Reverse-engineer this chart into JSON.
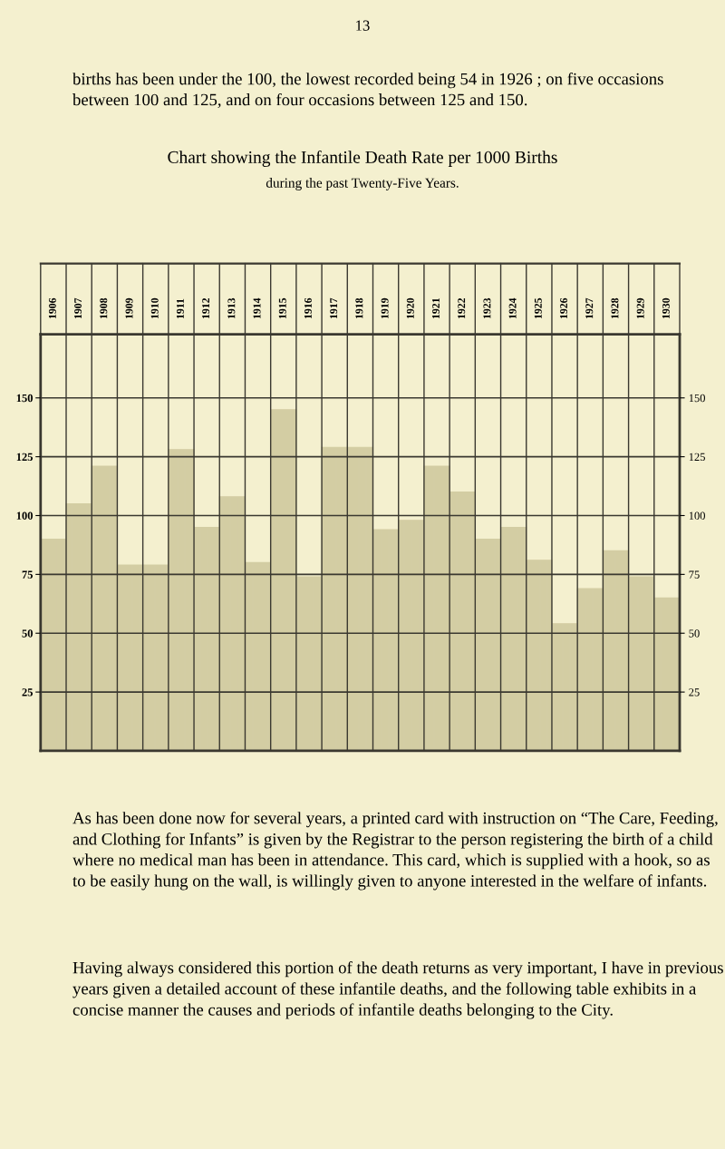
{
  "chart_data": {
    "type": "bar",
    "title": "Chart showing the Infantile Death Rate per 1000 Births",
    "subtitle": "during the past Twenty-Five Years.",
    "categories": [
      "1906",
      "1907",
      "1908",
      "1909",
      "1910",
      "1911",
      "1912",
      "1913",
      "1914",
      "1915",
      "1916",
      "1917",
      "1918",
      "1919",
      "1920",
      "1921",
      "1922",
      "1923",
      "1924",
      "1925",
      "1926",
      "1927",
      "1928",
      "1929",
      "1930"
    ],
    "values": [
      90,
      105,
      121,
      79,
      79,
      128,
      95,
      108,
      80,
      145,
      74,
      129,
      129,
      94,
      98,
      121,
      110,
      90,
      95,
      81,
      54,
      69,
      85,
      74,
      65
    ],
    "color": "#d3cda3",
    "ylim": [
      0,
      177
    ],
    "yticks": [
      25,
      50,
      75,
      100,
      125,
      150
    ],
    "y2lim": [
      0,
      177
    ],
    "y2ticks": [
      25,
      50,
      75,
      100,
      125,
      150
    ],
    "grid": true,
    "legend": false,
    "annotations": [
      "13",
      "births has been under the 100, the lowest recorded being 54 in 1926 ; on five occasions between 100 and 125, and on four occasions between 125 and 150.",
      "As has been done now for several years, a printed card with instruction on “The Care, Feeding, and Clothing for Infants” is given by the Registrar to the person registering the birth of a child where no medical man has been in attendance. This card, which is supplied with a hook, so as to be easily hung on the wall, is willingly given to anyone interested in the welfare of infants.",
      "Having always considered this portion of the death returns as very important, I have in previous years given a detailed account of these infantile deaths, and the following table exhibits in a concise manner the causes and periods of infantile deaths belonging to the City."
    ]
  }
}
